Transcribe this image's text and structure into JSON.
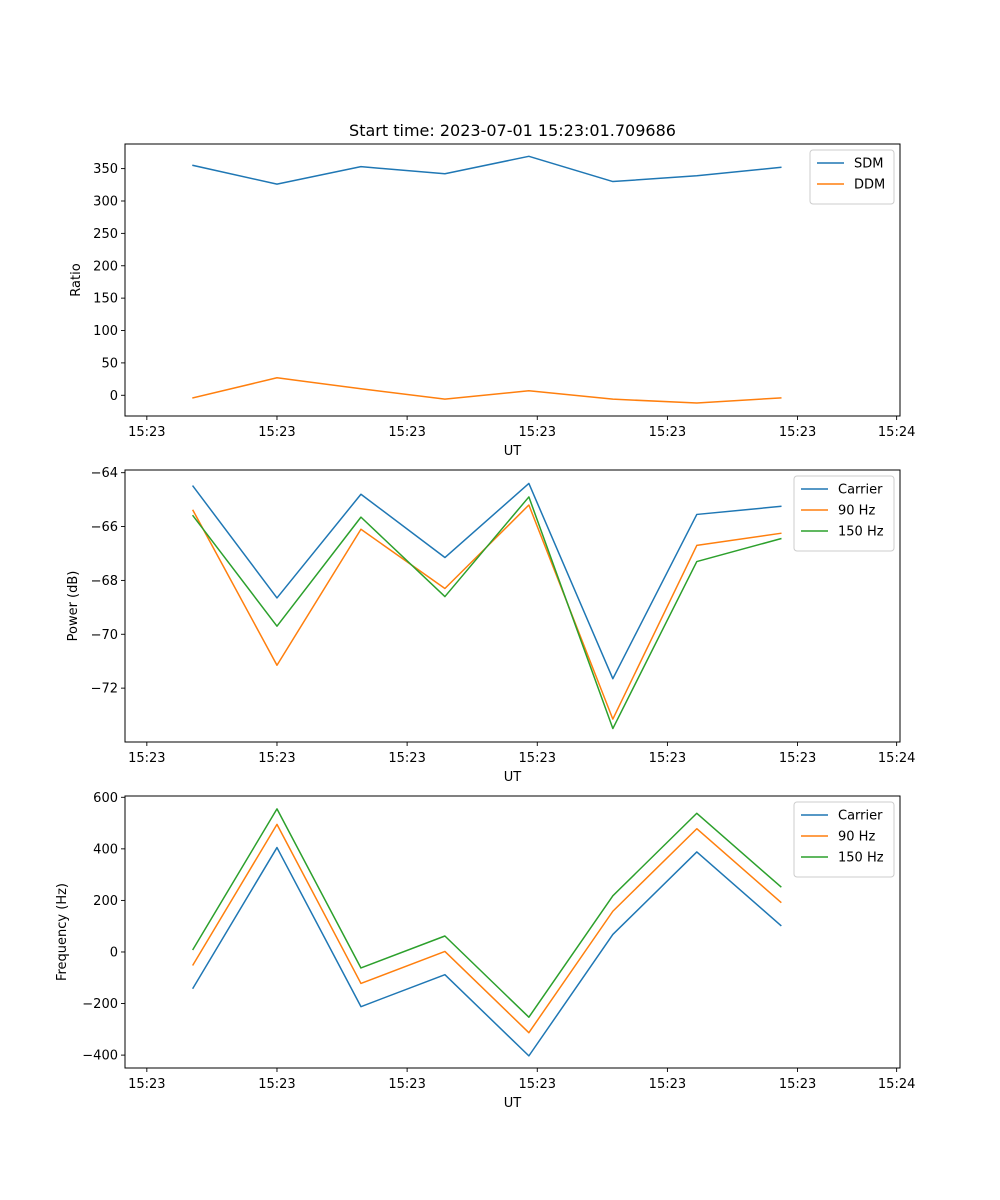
{
  "figure_title": "Start time: 2023-07-01 15:23:01.709686",
  "colors": {
    "blue": "#1f77b4",
    "orange": "#ff7f0e",
    "green": "#2ca02c"
  },
  "chart_data": [
    {
      "type": "line",
      "id": "ratio",
      "title": "Start time: 2023-07-01 15:23:01.709686",
      "xlabel": "UT",
      "ylabel": "Ratio",
      "x": [
        1,
        2,
        3,
        4,
        5,
        6,
        7,
        8
      ],
      "xlim": [
        0.19,
        9.42
      ],
      "x_ticks": [
        0.45,
        2.0,
        3.55,
        5.1,
        6.65,
        8.2,
        9.38
      ],
      "x_tick_labels": [
        "15:23",
        "15:23",
        "15:23",
        "15:23",
        "15:23",
        "15:23",
        "15:24"
      ],
      "ylim": [
        -32,
        388
      ],
      "y_ticks": [
        0,
        50,
        100,
        150,
        200,
        250,
        300,
        350
      ],
      "legend_position": "top-right",
      "series": [
        {
          "name": "SDM",
          "color": "#1f77b4",
          "values": [
            355,
            326,
            353,
            342,
            369,
            330,
            339,
            352
          ]
        },
        {
          "name": "DDM",
          "color": "#ff7f0e",
          "values": [
            -4,
            27,
            10,
            -6,
            7,
            -6,
            -12,
            -4
          ]
        }
      ]
    },
    {
      "type": "line",
      "id": "power",
      "title": "",
      "xlabel": "UT",
      "ylabel": "Power (dB)",
      "x": [
        1,
        2,
        3,
        4,
        5,
        6,
        7,
        8
      ],
      "xlim": [
        0.19,
        9.42
      ],
      "x_ticks": [
        0.45,
        2.0,
        3.55,
        5.1,
        6.65,
        8.2,
        9.38
      ],
      "x_tick_labels": [
        "15:23",
        "15:23",
        "15:23",
        "15:23",
        "15:23",
        "15:23",
        "15:24"
      ],
      "ylim": [
        -74.0,
        -63.9
      ],
      "y_ticks": [
        -72,
        -70,
        -68,
        -66,
        -64
      ],
      "legend_position": "top-right",
      "series": [
        {
          "name": "Carrier",
          "color": "#1f77b4",
          "values": [
            -64.5,
            -68.65,
            -64.8,
            -67.15,
            -64.4,
            -71.65,
            -65.55,
            -65.25
          ]
        },
        {
          "name": "90 Hz",
          "color": "#ff7f0e",
          "values": [
            -65.4,
            -71.15,
            -66.1,
            -68.3,
            -65.2,
            -73.15,
            -66.7,
            -66.25
          ]
        },
        {
          "name": "150 Hz",
          "color": "#2ca02c",
          "values": [
            -65.6,
            -69.7,
            -65.65,
            -68.6,
            -64.9,
            -73.5,
            -67.3,
            -66.45
          ]
        }
      ]
    },
    {
      "type": "line",
      "id": "frequency",
      "title": "",
      "xlabel": "UT",
      "ylabel": "Frequency (Hz)",
      "x": [
        1,
        2,
        3,
        4,
        5,
        6,
        7,
        8
      ],
      "xlim": [
        0.19,
        9.42
      ],
      "x_ticks": [
        0.45,
        2.0,
        3.55,
        5.1,
        6.65,
        8.2,
        9.38
      ],
      "x_tick_labels": [
        "15:23",
        "15:23",
        "15:23",
        "15:23",
        "15:23",
        "15:23",
        "15:24"
      ],
      "ylim": [
        -450,
        605
      ],
      "y_ticks": [
        -400,
        -200,
        0,
        200,
        400,
        600
      ],
      "legend_position": "top-right",
      "series": [
        {
          "name": "Carrier",
          "color": "#1f77b4",
          "values": [
            -140,
            405,
            -212,
            -88,
            -403,
            68,
            388,
            103
          ]
        },
        {
          "name": "90 Hz",
          "color": "#ff7f0e",
          "values": [
            -50,
            495,
            -122,
            2,
            -313,
            158,
            478,
            193
          ]
        },
        {
          "name": "150 Hz",
          "color": "#2ca02c",
          "values": [
            10,
            555,
            -62,
            62,
            -253,
            218,
            538,
            253
          ]
        }
      ]
    }
  ]
}
